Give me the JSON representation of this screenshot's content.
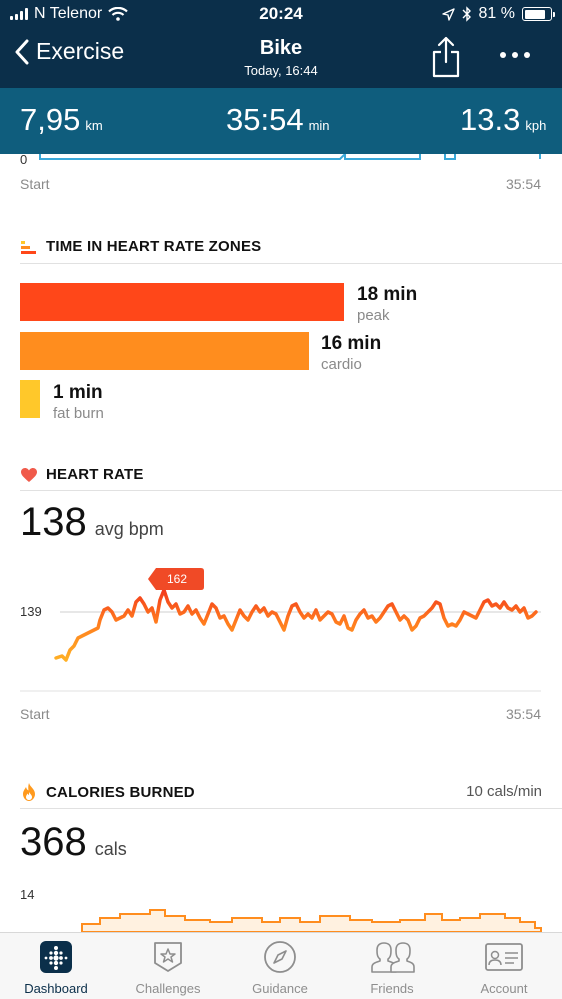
{
  "status": {
    "carrier": "N Telenor",
    "time": "20:24",
    "battery": "81 %"
  },
  "nav": {
    "back_label": "Exercise",
    "title": "Bike",
    "subtitle": "Today, 16:44"
  },
  "summary": {
    "distance": {
      "value": "7,95",
      "unit": "km"
    },
    "duration": {
      "value": "35:54",
      "unit": "min"
    },
    "speed": {
      "value": "13.3",
      "unit": "kph"
    }
  },
  "top_chart": {
    "y_label": "0",
    "start": "Start",
    "end": "35:54"
  },
  "zones": {
    "title": "TIME IN HEART RATE ZONES",
    "items": [
      {
        "minutes": "18 min",
        "name": "peak",
        "color": "#ff4719"
      },
      {
        "minutes": "16 min",
        "name": "cardio",
        "color": "#ff8d1e"
      },
      {
        "minutes": "1 min",
        "name": "fat burn",
        "color": "#ffc82a"
      }
    ]
  },
  "heart_rate": {
    "title": "HEART RATE",
    "avg_value": "138",
    "avg_unit": "avg bpm",
    "ref_label": "139",
    "peak_label": "162",
    "start": "Start",
    "end": "35:54"
  },
  "calories": {
    "title": "CALORIES BURNED",
    "rate": "10 cals/min",
    "value": "368",
    "unit": "cals",
    "y_label": "14"
  },
  "tabs": [
    {
      "label": "Dashboard",
      "icon": "dashboard-icon"
    },
    {
      "label": "Challenges",
      "icon": "star-badge-icon"
    },
    {
      "label": "Guidance",
      "icon": "compass-icon"
    },
    {
      "label": "Friends",
      "icon": "friends-icon"
    },
    {
      "label": "Account",
      "icon": "account-card-icon"
    }
  ],
  "colors": {
    "nav_bg": "#0b2f4a",
    "summary_bg": "#0f5d7d",
    "heart": "#f05a4a",
    "active_tab": "#0b2f4a"
  }
}
